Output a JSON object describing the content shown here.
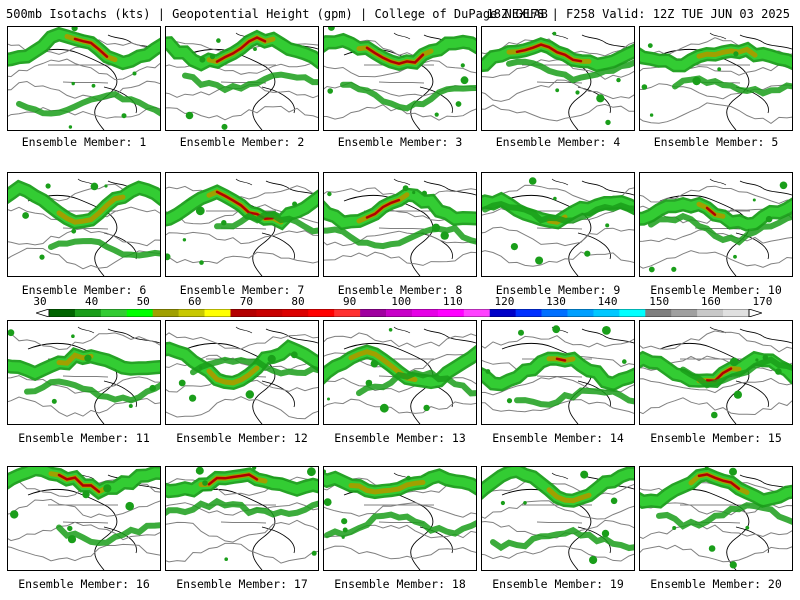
{
  "header": {
    "title": "500mb Isotachs (kts) | Geopotential Height (gpm) | College of DuPage NEXLAB",
    "run_info": "18Z GEFS | F258 Valid: 12Z TUE JUN 03 2025"
  },
  "caption_prefix": "Ensemble Member:",
  "members": [
    {
      "label": "Ensemble Member: 1"
    },
    {
      "label": "Ensemble Member: 2"
    },
    {
      "label": "Ensemble Member: 3"
    },
    {
      "label": "Ensemble Member: 4"
    },
    {
      "label": "Ensemble Member: 5"
    },
    {
      "label": "Ensemble Member: 6"
    },
    {
      "label": "Ensemble Member: 7"
    },
    {
      "label": "Ensemble Member: 8"
    },
    {
      "label": "Ensemble Member: 9"
    },
    {
      "label": "Ensemble Member: 10"
    },
    {
      "label": "Ensemble Member: 11"
    },
    {
      "label": "Ensemble Member: 12"
    },
    {
      "label": "Ensemble Member: 13"
    },
    {
      "label": "Ensemble Member: 14"
    },
    {
      "label": "Ensemble Member: 15"
    },
    {
      "label": "Ensemble Member: 16"
    },
    {
      "label": "Ensemble Member: 17"
    },
    {
      "label": "Ensemble Member: 18"
    },
    {
      "label": "Ensemble Member: 19"
    },
    {
      "label": "Ensemble Member: 20"
    }
  ],
  "colorbar": {
    "tick_labels": [
      "30",
      "40",
      "50",
      "60",
      "70",
      "80",
      "90",
      "100",
      "110",
      "120",
      "130",
      "140",
      "150",
      "160",
      "170"
    ],
    "colors": [
      "#006400",
      "#1a9e1a",
      "#33cc33",
      "#00ff00",
      "#a0a000",
      "#c8c800",
      "#ffff00",
      "#b40000",
      "#c80000",
      "#dc0000",
      "#ff0000",
      "#ff3030",
      "#a000a0",
      "#c800c8",
      "#e600e6",
      "#ff00ff",
      "#ff40ff",
      "#0000c8",
      "#0030ff",
      "#0070ff",
      "#00a0ff",
      "#00c8ff",
      "#00ffff",
      "#808080",
      "#a0a0a0",
      "#c8c8c8",
      "#e0e0e0"
    ]
  }
}
